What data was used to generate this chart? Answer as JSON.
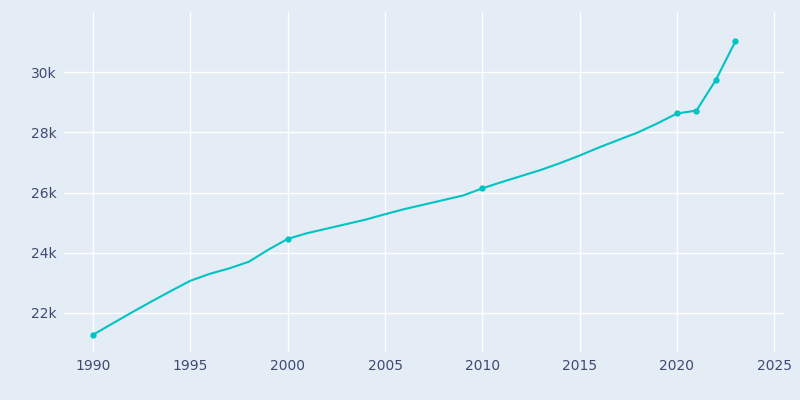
{
  "years": [
    1990,
    1991,
    1992,
    1993,
    1994,
    1995,
    1996,
    1997,
    1998,
    1999,
    2000,
    2001,
    2002,
    2003,
    2004,
    2005,
    2006,
    2007,
    2008,
    2009,
    2010,
    2011,
    2012,
    2013,
    2014,
    2015,
    2016,
    2017,
    2018,
    2019,
    2020,
    2021,
    2022,
    2023
  ],
  "population": [
    21276,
    21650,
    22020,
    22380,
    22730,
    23070,
    23300,
    23480,
    23700,
    24100,
    24461,
    24650,
    24800,
    24950,
    25100,
    25280,
    25450,
    25600,
    25750,
    25900,
    26139,
    26350,
    26550,
    26750,
    26980,
    27230,
    27500,
    27750,
    28000,
    28300,
    28628,
    28724,
    29745,
    31022
  ],
  "marker_years": [
    1990,
    2000,
    2010,
    2020,
    2021,
    2022,
    2023
  ],
  "marker_pops": [
    21276,
    24461,
    26139,
    28628,
    28724,
    29745,
    31022
  ],
  "line_color": "#00C4C4",
  "bg_color": "#E4ECF5",
  "grid_color": "#FFFFFF",
  "tick_color": "#3d4b72",
  "xlim": [
    1988.5,
    2025.5
  ],
  "ylim": [
    20700,
    32000
  ],
  "xticks": [
    1990,
    1995,
    2000,
    2005,
    2010,
    2015,
    2020,
    2025
  ],
  "yticks": [
    22000,
    24000,
    26000,
    28000,
    30000
  ]
}
